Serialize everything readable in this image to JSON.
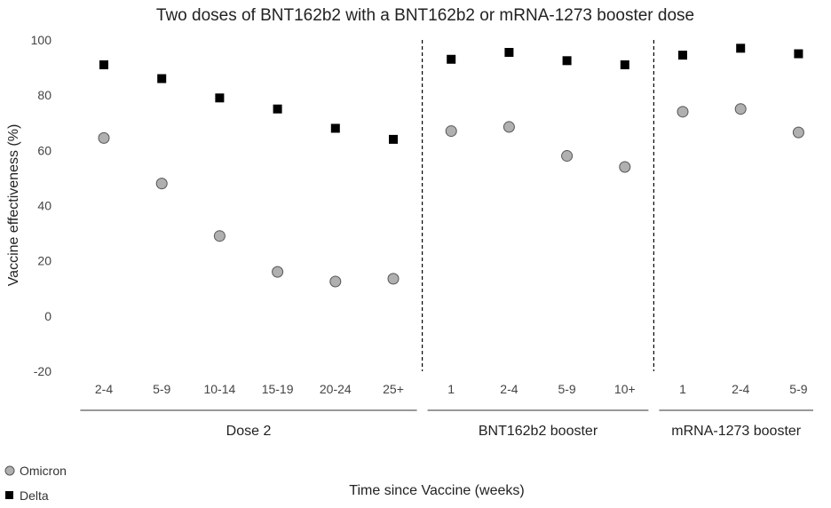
{
  "chart_data": {
    "type": "scatter",
    "title": "Two doses of BNT162b2 with a BNT162b2 or mRNA-1273 booster dose",
    "xlabel": "Time since Vaccine (weeks)",
    "ylabel": "Vaccine effectiveness (%)",
    "ylim": [
      -20,
      100
    ],
    "yticks": [
      -20,
      0,
      20,
      40,
      60,
      80,
      100
    ],
    "grid": false,
    "legend_position": "bottom-left",
    "categories": [
      "2-4",
      "5-9",
      "10-14",
      "15-19",
      "20-24",
      "25+",
      "1",
      "2-4",
      "5-9",
      "10+",
      "1",
      "2-4",
      "5-9"
    ],
    "groups": [
      {
        "label": "Dose 2",
        "count": 6
      },
      {
        "label": "BNT162b2 booster",
        "count": 4
      },
      {
        "label": "mRNA-1273 booster",
        "count": 3
      }
    ],
    "series": [
      {
        "name": "Omicron",
        "marker": "circle",
        "color": "#b0b0b0",
        "values": [
          64.5,
          48,
          29,
          16,
          12.5,
          13.5,
          67,
          68.5,
          58,
          54,
          74,
          75,
          66.5
        ]
      },
      {
        "name": "Delta",
        "marker": "square",
        "color": "#000000",
        "values": [
          91,
          86,
          79,
          75,
          68,
          64,
          93,
          95.5,
          92.5,
          91,
          94.5,
          97,
          95
        ]
      }
    ]
  }
}
